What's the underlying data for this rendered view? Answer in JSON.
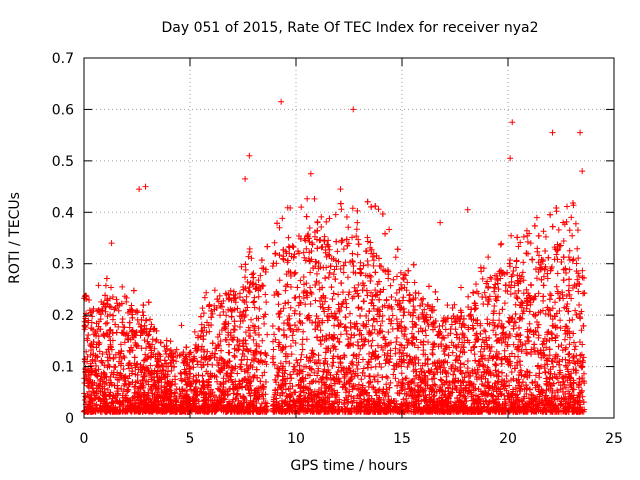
{
  "chart_data": {
    "type": "scatter",
    "title": "Day 051 of 2015, Rate Of TEC Index for receiver nya2",
    "xlabel": "GPS time / hours",
    "ylabel": "ROTI / TECUs",
    "xlim": [
      0,
      25
    ],
    "ylim": [
      0,
      0.7
    ],
    "xticks": [
      0,
      5,
      10,
      15,
      20,
      25
    ],
    "yticks": [
      0,
      0.1,
      0.2,
      0.3,
      0.4,
      0.5,
      0.6,
      0.7
    ],
    "xtick_labels": [
      "0",
      "5",
      "10",
      "15",
      "20",
      "25"
    ],
    "ytick_labels": [
      "0",
      "0.1",
      "0.2",
      "0.3",
      "0.4",
      "0.5",
      "0.6",
      "0.7"
    ],
    "grid": true,
    "marker": "+",
    "color": "#ff0000",
    "envelope": [
      {
        "x": 0.0,
        "q90": 0.17
      },
      {
        "x": 1.0,
        "q90": 0.19
      },
      {
        "x": 2.0,
        "q90": 0.2
      },
      {
        "x": 3.0,
        "q90": 0.16
      },
      {
        "x": 4.0,
        "q90": 0.11
      },
      {
        "x": 5.0,
        "q90": 0.1
      },
      {
        "x": 6.0,
        "q90": 0.19
      },
      {
        "x": 7.0,
        "q90": 0.21
      },
      {
        "x": 8.0,
        "q90": 0.24
      },
      {
        "x": 9.0,
        "q90": 0.27
      },
      {
        "x": 10.0,
        "q90": 0.3
      },
      {
        "x": 11.0,
        "q90": 0.3
      },
      {
        "x": 12.0,
        "q90": 0.29
      },
      {
        "x": 13.0,
        "q90": 0.3
      },
      {
        "x": 14.0,
        "q90": 0.28
      },
      {
        "x": 15.0,
        "q90": 0.24
      },
      {
        "x": 16.0,
        "q90": 0.19
      },
      {
        "x": 17.0,
        "q90": 0.16
      },
      {
        "x": 18.0,
        "q90": 0.18
      },
      {
        "x": 19.0,
        "q90": 0.22
      },
      {
        "x": 20.0,
        "q90": 0.25
      },
      {
        "x": 21.0,
        "q90": 0.27
      },
      {
        "x": 22.0,
        "q90": 0.28
      },
      {
        "x": 23.0,
        "q90": 0.3
      },
      {
        "x": 23.6,
        "q90": 0.26
      }
    ],
    "notable_points": [
      {
        "x": 9.3,
        "y": 0.615
      },
      {
        "x": 12.7,
        "y": 0.6
      },
      {
        "x": 20.2,
        "y": 0.575
      },
      {
        "x": 22.1,
        "y": 0.555
      },
      {
        "x": 23.4,
        "y": 0.555
      },
      {
        "x": 20.1,
        "y": 0.505
      },
      {
        "x": 7.8,
        "y": 0.51
      },
      {
        "x": 2.9,
        "y": 0.45
      },
      {
        "x": 2.6,
        "y": 0.445
      },
      {
        "x": 10.7,
        "y": 0.475
      },
      {
        "x": 12.1,
        "y": 0.445
      },
      {
        "x": 7.6,
        "y": 0.465
      },
      {
        "x": 18.1,
        "y": 0.405
      },
      {
        "x": 16.8,
        "y": 0.38
      },
      {
        "x": 1.3,
        "y": 0.34
      },
      {
        "x": 4.6,
        "y": 0.18
      },
      {
        "x": 23.5,
        "y": 0.48
      }
    ]
  }
}
